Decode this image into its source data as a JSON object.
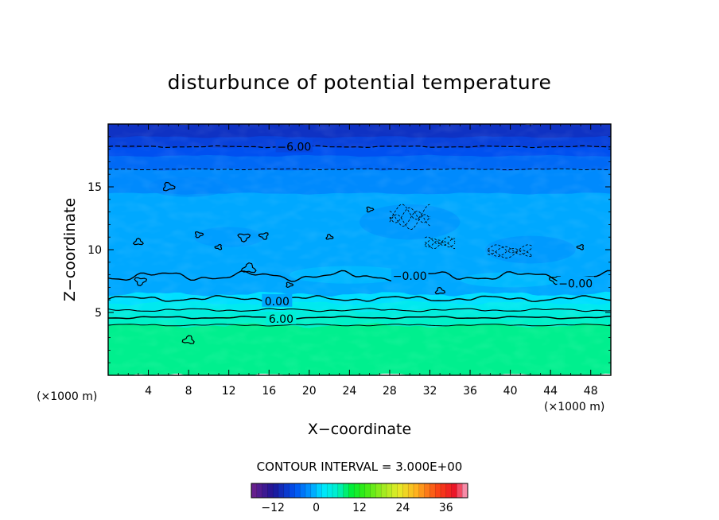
{
  "chart_data": {
    "type": "contour",
    "title": "disturbunce of potential temperature",
    "xlabel": "X−coordinate",
    "ylabel": "Z−coordinate",
    "x_unit": "(×1000 m)",
    "y_unit": "(×1000 m)",
    "xlim": [
      0,
      50
    ],
    "ylim": [
      0,
      20
    ],
    "x_ticks": [
      4,
      8,
      12,
      16,
      20,
      24,
      28,
      32,
      36,
      40,
      44,
      48
    ],
    "x_tick_labels": [
      "4",
      "8",
      "12",
      "16",
      "20",
      "24",
      "28",
      "32",
      "36",
      "40",
      "44",
      "48"
    ],
    "y_ticks": [
      5,
      10,
      15
    ],
    "y_tick_labels": [
      "5",
      "10",
      "15"
    ],
    "contour_interval_text": "CONTOUR INTERVAL = 3.000E+00",
    "contour_interval": 3.0,
    "contour_labels": [
      {
        "text": "−6.00",
        "x": 18.5,
        "z": 18.2,
        "value": -6
      },
      {
        "text": "−0.00",
        "x": 30.0,
        "z": 7.9,
        "value": 0
      },
      {
        "text": "0.00",
        "x": 16.8,
        "z": 5.9,
        "value": 0
      },
      {
        "text": "6.00",
        "x": 17.2,
        "z": 4.5,
        "value": 6
      },
      {
        "text": "−0.00",
        "x": 46.5,
        "z": 7.3,
        "value": 0
      }
    ],
    "color_bands": [
      {
        "z0": 0.0,
        "z1": 4.0,
        "value": 7.5
      },
      {
        "z0": 4.0,
        "z1": 4.6,
        "value": 6.0
      },
      {
        "z0": 4.6,
        "z1": 5.2,
        "value": 4.5
      },
      {
        "z0": 5.2,
        "z1": 5.8,
        "value": 3.0
      },
      {
        "z0": 5.8,
        "z1": 6.5,
        "value": 1.5
      },
      {
        "z0": 6.5,
        "z1": 14.5,
        "value": -1.0
      },
      {
        "z0": 14.5,
        "z1": 16.4,
        "value": -2.5
      },
      {
        "z0": 16.4,
        "z1": 17.5,
        "value": -4.5
      },
      {
        "z0": 17.5,
        "z1": 18.2,
        "value": -6.0
      },
      {
        "z0": 18.2,
        "z1": 19.0,
        "value": -7.5
      },
      {
        "z0": 19.0,
        "z1": 20.0,
        "value": -9.0
      }
    ],
    "colorbar": {
      "min": -18,
      "max": 42,
      "ticks": [
        -12,
        0,
        12,
        24,
        36
      ],
      "tick_labels": [
        "−12",
        "0",
        "12",
        "24",
        "36"
      ]
    }
  },
  "colors": {
    "background": "#ffffff",
    "frame": "#000000"
  }
}
